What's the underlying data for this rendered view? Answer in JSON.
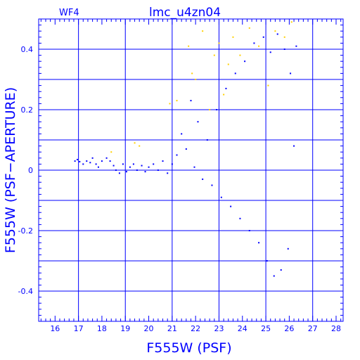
{
  "chart_data": {
    "type": "scatter",
    "title": "lmc_u4zn04",
    "panel_label": "WF4",
    "xlabel": "F555W (PSF)",
    "ylabel": "F555W (PSF−APERTURE)",
    "xlim": [
      15.3,
      28.3
    ],
    "ylim": [
      -0.5,
      0.5
    ],
    "xticks": [
      16,
      17,
      18,
      19,
      20,
      21,
      22,
      23,
      24,
      25,
      26,
      27,
      28
    ],
    "yticks": [
      -0.4,
      -0.2,
      0,
      0.2,
      0.4
    ],
    "grid": true,
    "colors": {
      "axes": "#0000ff",
      "main_points": "#0000ff",
      "flagged_points": "#ffd000"
    },
    "series": [
      {
        "color": "#0000ff",
        "points": [
          [
            16.85,
            0.03
          ],
          [
            16.95,
            0.035
          ],
          [
            17.05,
            0.028
          ],
          [
            17.2,
            0.02
          ],
          [
            17.35,
            0.03
          ],
          [
            17.5,
            0.025
          ],
          [
            17.6,
            0.04
          ],
          [
            17.75,
            0.02
          ],
          [
            17.85,
            0.01
          ],
          [
            18.0,
            0.03
          ],
          [
            18.2,
            0.04
          ],
          [
            18.35,
            0.03
          ],
          [
            18.5,
            0.015
          ],
          [
            18.6,
            0.0
          ],
          [
            18.75,
            -0.01
          ],
          [
            18.9,
            0.02
          ],
          [
            19.05,
            -0.005
          ],
          [
            19.2,
            0.01
          ],
          [
            19.35,
            0.02
          ],
          [
            19.5,
            0.0
          ],
          [
            19.7,
            0.015
          ],
          [
            19.85,
            -0.005
          ],
          [
            20.0,
            0.01
          ],
          [
            20.2,
            0.02
          ],
          [
            20.4,
            0.0
          ],
          [
            20.6,
            0.03
          ],
          [
            20.8,
            -0.01
          ],
          [
            21.0,
            0.02
          ],
          [
            21.2,
            0.05
          ],
          [
            21.4,
            0.12
          ],
          [
            21.6,
            0.07
          ],
          [
            21.8,
            0.23
          ],
          [
            21.95,
            0.01
          ],
          [
            22.1,
            0.16
          ],
          [
            22.3,
            -0.03
          ],
          [
            22.5,
            0.1
          ],
          [
            22.7,
            -0.05
          ],
          [
            22.9,
            0.2
          ],
          [
            23.1,
            -0.09
          ],
          [
            23.3,
            0.27
          ],
          [
            23.5,
            -0.12
          ],
          [
            23.7,
            0.32
          ],
          [
            23.9,
            -0.16
          ],
          [
            24.1,
            0.36
          ],
          [
            24.3,
            -0.2
          ],
          [
            24.5,
            0.42
          ],
          [
            24.7,
            -0.24
          ],
          [
            24.9,
            0.44
          ],
          [
            25.05,
            -0.3
          ],
          [
            25.2,
            0.39
          ],
          [
            25.35,
            -0.35
          ],
          [
            25.5,
            0.45
          ],
          [
            25.65,
            -0.33
          ],
          [
            25.8,
            0.4
          ],
          [
            25.95,
            -0.26
          ],
          [
            26.05,
            0.32
          ],
          [
            26.2,
            0.08
          ],
          [
            26.3,
            0.41
          ]
        ]
      },
      {
        "color": "#ffd000",
        "points": [
          [
            18.4,
            0.06
          ],
          [
            19.4,
            0.09
          ],
          [
            19.6,
            0.08
          ],
          [
            20.9,
            0.22
          ],
          [
            21.2,
            0.23
          ],
          [
            21.7,
            0.41
          ],
          [
            21.85,
            0.32
          ],
          [
            22.0,
            0.3
          ],
          [
            22.3,
            0.46
          ],
          [
            22.6,
            0.2
          ],
          [
            22.8,
            0.38
          ],
          [
            23.0,
            0.42
          ],
          [
            23.2,
            0.25
          ],
          [
            23.4,
            0.35
          ],
          [
            23.6,
            0.44
          ],
          [
            23.9,
            0.38
          ],
          [
            24.3,
            0.47
          ],
          [
            24.7,
            0.41
          ],
          [
            25.1,
            0.28
          ],
          [
            25.4,
            0.46
          ],
          [
            25.8,
            0.44
          ],
          [
            26.1,
            0.49
          ]
        ]
      }
    ]
  }
}
